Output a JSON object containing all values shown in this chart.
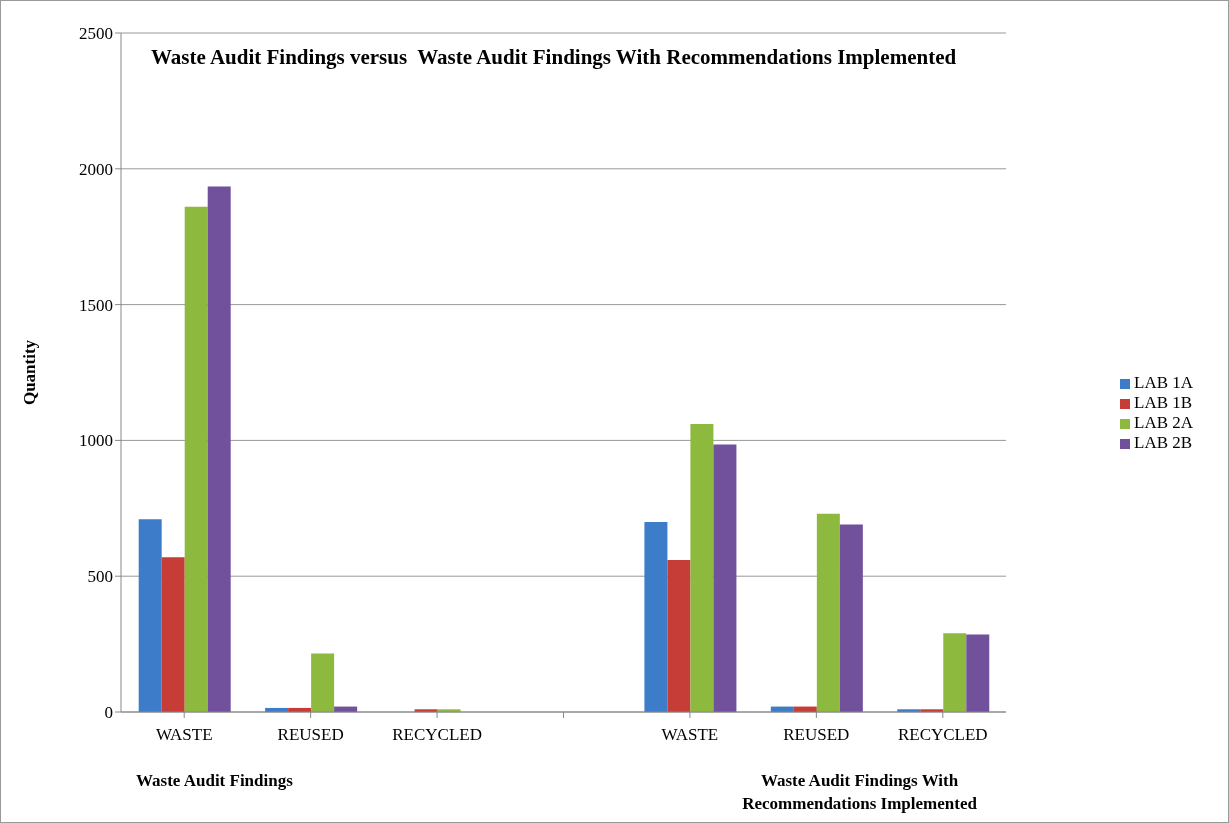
{
  "chart_data": {
    "type": "bar",
    "title": "Waste Audit Findings versus  Waste Audit Findings With Recommendations Implemented",
    "ylabel": "Quantity",
    "categories": [
      "WASTE",
      "REUSED",
      "RECYCLED",
      null,
      "WASTE",
      "REUSED",
      "RECYCLED"
    ],
    "series": [
      {
        "name": "LAB 1A",
        "color": "#3c7cc8",
        "values": [
          710,
          15,
          0,
          null,
          700,
          20,
          10
        ]
      },
      {
        "name": "LAB 1B",
        "color": "#c63d38",
        "values": [
          570,
          15,
          10,
          null,
          560,
          20,
          10
        ]
      },
      {
        "name": "LAB 2A",
        "color": "#8eb93f",
        "values": [
          1860,
          215,
          10,
          null,
          1060,
          730,
          290
        ]
      },
      {
        "name": "LAB 2B",
        "color": "#72519c",
        "values": [
          1935,
          20,
          0,
          null,
          985,
          690,
          285
        ]
      }
    ],
    "ylim": [
      0,
      2500
    ],
    "yticks": [
      0,
      500,
      1000,
      1500,
      2000,
      2500
    ],
    "grid": "y",
    "legend": "right",
    "annotations": [
      "Waste Audit Findings",
      "Waste Audit Findings With Recommendations Implemented"
    ]
  }
}
